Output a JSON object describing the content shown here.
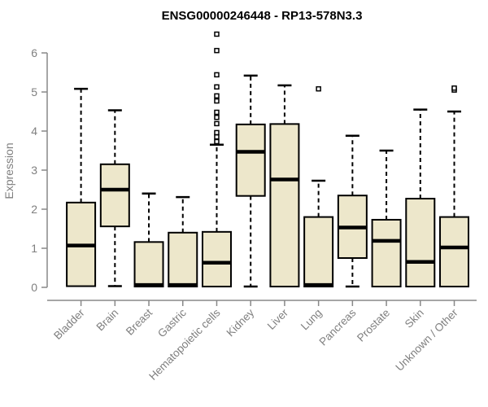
{
  "window": {
    "background": "#ffffff"
  },
  "chart_data": {
    "type": "boxplot",
    "title": "ENSG00000246448 - RP13-578N3.3",
    "ylabel": "Expression",
    "xlabel": "",
    "ylim": [
      0,
      6.5
    ],
    "yticks": [
      0,
      1,
      2,
      3,
      4,
      5,
      6
    ],
    "grid": false,
    "legend_position": "none",
    "categories": [
      "Bladder",
      "Brain",
      "Breast",
      "Gastric",
      "Hematopoietic cells",
      "Kidney",
      "Liver",
      "Lung",
      "Pancreas",
      "Prostate",
      "Skin",
      "Unknown / Other"
    ],
    "series": [
      {
        "category": "Bladder",
        "low": 0.03,
        "q1": 0.03,
        "median": 1.07,
        "q3": 2.17,
        "high": 5.08,
        "outliers": []
      },
      {
        "category": "Brain",
        "low": 0.03,
        "q1": 1.56,
        "median": 2.5,
        "q3": 3.15,
        "high": 4.53,
        "outliers": []
      },
      {
        "category": "Breast",
        "low": 0.02,
        "q1": 0.02,
        "median": 0.06,
        "q3": 1.16,
        "high": 2.4,
        "outliers": []
      },
      {
        "category": "Gastric",
        "low": 0.02,
        "q1": 0.02,
        "median": 0.06,
        "q3": 1.4,
        "high": 2.31,
        "outliers": []
      },
      {
        "category": "Hematopoietic cells",
        "low": 0.02,
        "q1": 0.02,
        "median": 0.63,
        "q3": 1.42,
        "high": 3.65,
        "outliers": [
          3.73,
          3.85,
          3.96,
          4.19,
          4.35,
          4.48,
          4.77,
          4.9,
          5.13,
          5.44,
          6.06,
          6.48
        ]
      },
      {
        "category": "Kidney",
        "low": 0.02,
        "q1": 2.34,
        "median": 3.47,
        "q3": 4.17,
        "high": 5.42,
        "outliers": []
      },
      {
        "category": "Liver",
        "low": 0.02,
        "q1": 0.02,
        "median": 2.76,
        "q3": 4.18,
        "high": 5.17,
        "outliers": []
      },
      {
        "category": "Lung",
        "low": 0.02,
        "q1": 0.02,
        "median": 0.06,
        "q3": 1.8,
        "high": 2.73,
        "outliers": [
          5.08
        ]
      },
      {
        "category": "Pancreas",
        "low": 0.02,
        "q1": 0.75,
        "median": 1.53,
        "q3": 2.35,
        "high": 3.88,
        "outliers": []
      },
      {
        "category": "Prostate",
        "low": 0.02,
        "q1": 0.02,
        "median": 1.19,
        "q3": 1.73,
        "high": 3.5,
        "outliers": []
      },
      {
        "category": "Skin",
        "low": 0.02,
        "q1": 0.02,
        "median": 0.65,
        "q3": 2.27,
        "high": 4.55,
        "outliers": []
      },
      {
        "category": "Unknown / Other",
        "low": 0.02,
        "q1": 0.02,
        "median": 1.02,
        "q3": 1.8,
        "high": 4.5,
        "outliers": [
          5.05,
          5.1
        ]
      }
    ],
    "colors": {
      "box_fill": "#ede7cb",
      "box_stroke": "#000000",
      "median": "#000000",
      "whisker": "#000000",
      "axis": "#888888",
      "tick_text": "#7f7f7f",
      "title": "#000000",
      "background": "#ffffff"
    }
  }
}
